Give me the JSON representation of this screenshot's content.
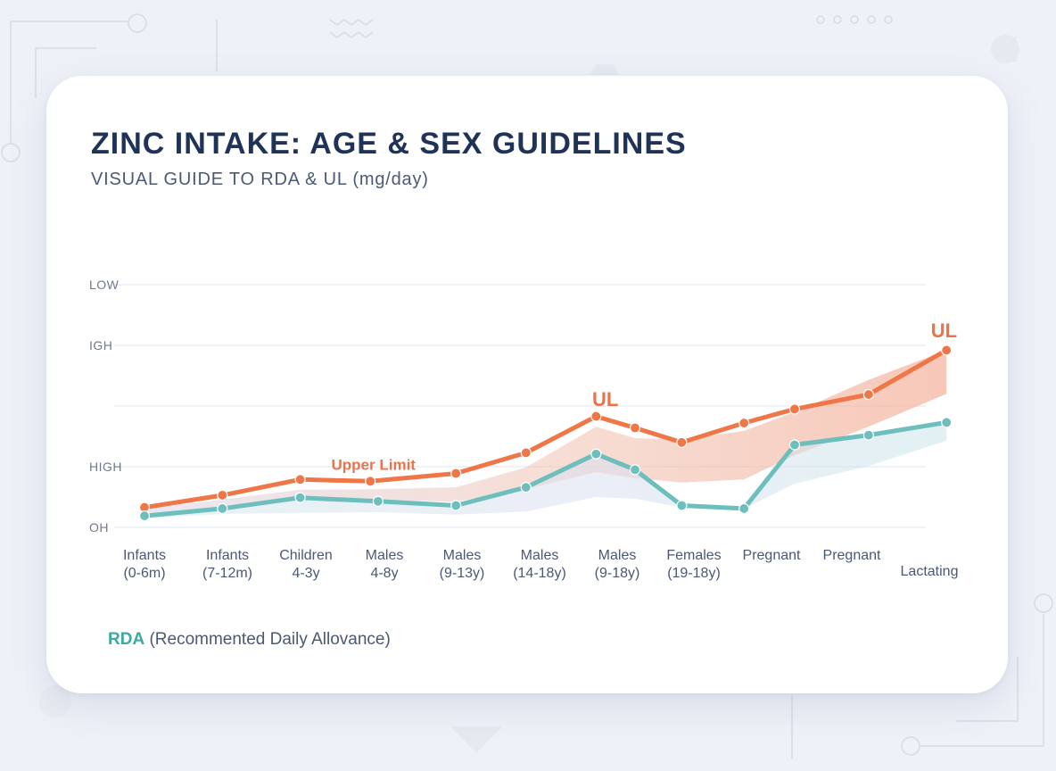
{
  "colors": {
    "ul": "#ef7647",
    "rda": "#6dbfbd",
    "title": "#1f3358",
    "background": "#eef1f7",
    "card": "#ffffff"
  },
  "header": {
    "title": "ZINC INTAKE: AGE & SEX GUIDELINES",
    "subtitle": "VISUAL GUIDE TO RDA & UL (mg/day)"
  },
  "legend": {
    "key": "RDA",
    "description": "(Recommented Daily Allovance)"
  },
  "chart_data": {
    "type": "line",
    "title": "ZINC INTAKE: AGE & SEX GUIDELINES",
    "subtitle": "VISUAL GUIDE TO RDA & UL (mg/day)",
    "xlabel": "",
    "ylabel": "",
    "ylim": [
      0,
      40
    ],
    "grid": true,
    "y_ticks": [
      {
        "label": "OH",
        "value": 0
      },
      {
        "label": "HIGH",
        "value": 10
      },
      {
        "label": "",
        "value": 20
      },
      {
        "label": "IGH",
        "value": 30
      },
      {
        "label": "LOW",
        "value": 40
      }
    ],
    "categories": [
      {
        "line1": "Infants",
        "line2": "(0-6m)"
      },
      {
        "line1": "Infants",
        "line2": "(7-12m)"
      },
      {
        "line1": "Children",
        "line2": "4-3y"
      },
      {
        "line1": "Males",
        "line2": "4-8y"
      },
      {
        "line1": "Males",
        "line2": "(9-13y)"
      },
      {
        "line1": "Males",
        "line2": "(14-18y)"
      },
      {
        "line1": "Males",
        "line2": "(9-18y)"
      },
      {
        "line1": "Females",
        "line2": "(19-18y)"
      },
      {
        "line1": "Pregnant",
        "line2": ""
      },
      {
        "line1": "Pregnant",
        "line2": ""
      },
      {
        "line1": "Lactating",
        "line2": ""
      }
    ],
    "series": [
      {
        "name": "UL",
        "x": [
          0,
          1,
          2,
          2.9,
          4,
          4.9,
          5.8,
          6.3,
          6.9,
          7.7,
          8.35,
          9.3,
          10.3
        ],
        "values": [
          3.3,
          5.3,
          7.9,
          7.6,
          8.9,
          12.3,
          18.3,
          16.4,
          14.0,
          17.2,
          19.5,
          21.9,
          29.2
        ],
        "band_upper": [
          3.0,
          4.6,
          6.2,
          6.3,
          6.6,
          9.9,
          16.6,
          14.7,
          14.5,
          15.9,
          19.0,
          24.3,
          29.2
        ],
        "band_lower": [
          2.3,
          3.4,
          4.7,
          4.6,
          4.2,
          6.3,
          9.1,
          8.1,
          7.4,
          7.9,
          11.9,
          16.6,
          22.0
        ]
      },
      {
        "name": "RDA",
        "x": [
          0,
          1,
          2,
          3,
          4,
          4.9,
          5.8,
          6.3,
          6.9,
          7.7,
          8.35,
          9.3,
          10.3
        ],
        "values": [
          1.9,
          3.1,
          4.9,
          4.3,
          3.6,
          6.6,
          12.1,
          9.5,
          3.6,
          3.1,
          13.6,
          15.2,
          17.3
        ],
        "band_upper": [
          1.9,
          3.1,
          4.9,
          4.3,
          3.6,
          6.6,
          12.1,
          9.5,
          3.6,
          3.1,
          13.6,
          15.2,
          17.3
        ],
        "band_lower": [
          1.5,
          2.2,
          2.4,
          2.5,
          2.1,
          2.6,
          5.0,
          4.7,
          3.3,
          3.1,
          7.2,
          10.1,
          14.3
        ]
      }
    ],
    "annotations": [
      {
        "text": "Upper Limit",
        "x": 2.4,
        "y": 9.5
      },
      {
        "text": "UL",
        "x": 5.75,
        "y": 20.0
      },
      {
        "text": "UL",
        "x": 10.1,
        "y": 31.3
      }
    ]
  }
}
